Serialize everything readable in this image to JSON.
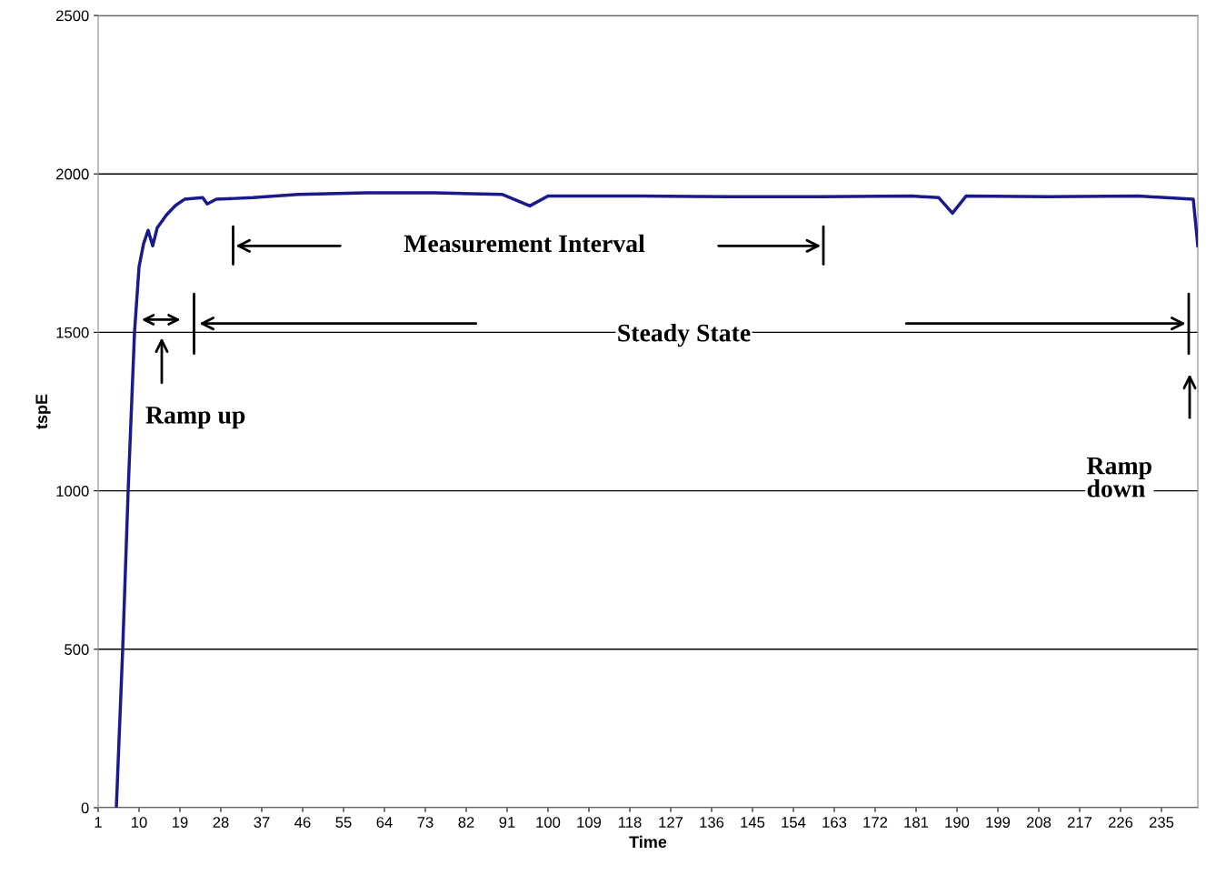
{
  "chart_data": {
    "type": "line",
    "xlabel": "Time",
    "ylabel": "tspE",
    "x": [
      5,
      6.4,
      7.6,
      9,
      10,
      11,
      12,
      13,
      14,
      16,
      18,
      20,
      24,
      25,
      27,
      35,
      45,
      60,
      75,
      90,
      96,
      100,
      120,
      140,
      160,
      180,
      186,
      189,
      192,
      210,
      230,
      242,
      243
    ],
    "series": [
      {
        "color": "#1a1a8c",
        "values": [
          0,
          500,
          1000,
          1500,
          1707,
          1780,
          1822,
          1773,
          1830,
          1870,
          1900,
          1920,
          1925,
          1905,
          1920,
          1925,
          1935,
          1940,
          1940,
          1935,
          1899,
          1930,
          1930,
          1928,
          1928,
          1930,
          1925,
          1876,
          1930,
          1928,
          1930,
          1920,
          1773
        ]
      }
    ],
    "xlim": [
      1,
      243
    ],
    "xticks": [
      1,
      10,
      19,
      28,
      37,
      46,
      55,
      64,
      73,
      82,
      91,
      100,
      109,
      118,
      127,
      136,
      145,
      154,
      163,
      172,
      181,
      190,
      199,
      208,
      217,
      226,
      235
    ],
    "ylim": [
      0,
      2500
    ],
    "yticks": [
      0,
      500,
      1000,
      1500,
      2000,
      2500
    ],
    "grid": "y",
    "marker": "none",
    "line_style": "solid",
    "annotations": [
      "Measurement Interval",
      "Steady State",
      "Ramp up",
      "Ramp\ndown"
    ]
  }
}
